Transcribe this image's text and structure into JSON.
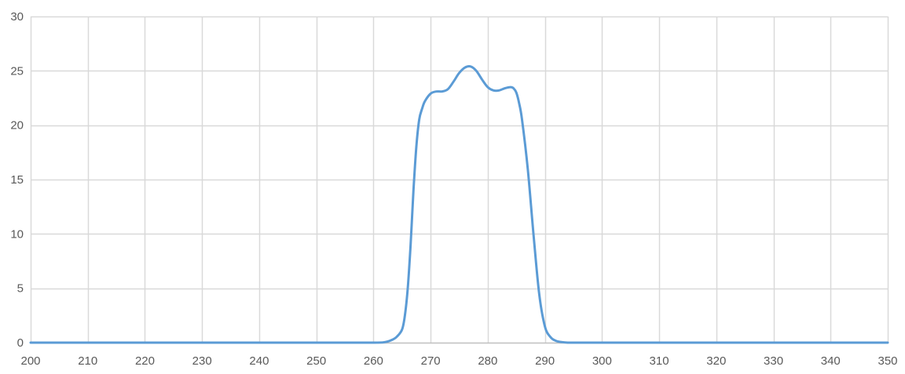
{
  "chart_data": {
    "type": "line",
    "title": "",
    "xlabel": "",
    "ylabel": "",
    "xlim": [
      200,
      350
    ],
    "ylim": [
      0,
      30
    ],
    "x_ticks": [
      200,
      210,
      220,
      230,
      240,
      250,
      260,
      270,
      280,
      290,
      300,
      310,
      320,
      330,
      340,
      350
    ],
    "y_ticks": [
      0,
      5,
      10,
      15,
      20,
      25,
      30
    ],
    "grid": true,
    "legend": "none",
    "colors": {
      "series": "#5b9bd5",
      "grid": "#d9d9d9",
      "axis": "#bfbfbf",
      "tick_label": "#595959"
    },
    "series": [
      {
        "x": [
          200,
          210,
          220,
          230,
          240,
          250,
          260,
          262,
          263,
          264,
          265,
          265.5,
          266,
          266.5,
          267,
          267.5,
          268,
          268.5,
          269,
          270,
          271,
          272,
          273,
          274,
          275,
          276,
          277,
          278,
          279,
          280,
          281,
          282,
          283,
          284,
          284.5,
          285,
          285.5,
          286,
          287,
          288,
          289,
          290,
          291,
          292,
          293,
          294,
          295,
          300,
          310,
          320,
          330,
          340,
          350
        ],
        "y": [
          0,
          0,
          0,
          0,
          0,
          0,
          0,
          0.05,
          0.2,
          0.5,
          1.2,
          2.5,
          5,
          9,
          14,
          18,
          20.5,
          21.5,
          22.2,
          22.9,
          23.1,
          23.1,
          23.3,
          24,
          24.8,
          25.3,
          25.4,
          25.0,
          24.2,
          23.5,
          23.2,
          23.2,
          23.4,
          23.5,
          23.4,
          23.0,
          22.0,
          20.5,
          16,
          10,
          4.5,
          1.5,
          0.5,
          0.15,
          0.05,
          0,
          0,
          0,
          0,
          0,
          0,
          0,
          0
        ]
      }
    ]
  }
}
